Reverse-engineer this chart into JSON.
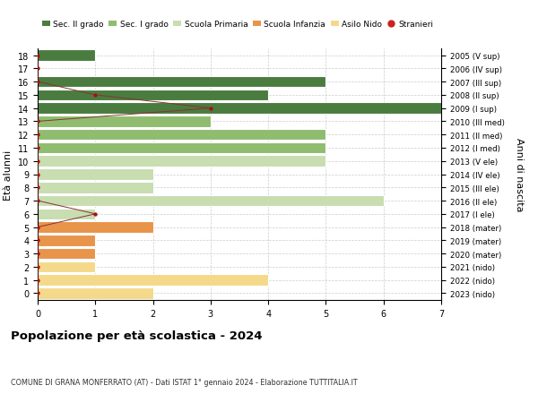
{
  "ages": [
    0,
    1,
    2,
    3,
    4,
    5,
    6,
    7,
    8,
    9,
    10,
    11,
    12,
    13,
    14,
    15,
    16,
    17,
    18
  ],
  "right_labels": [
    "2023 (nido)",
    "2022 (nido)",
    "2021 (nido)",
    "2020 (mater)",
    "2019 (mater)",
    "2018 (mater)",
    "2017 (I ele)",
    "2016 (II ele)",
    "2015 (III ele)",
    "2014 (IV ele)",
    "2013 (V ele)",
    "2012 (I med)",
    "2011 (II med)",
    "2010 (III med)",
    "2009 (I sup)",
    "2008 (II sup)",
    "2007 (III sup)",
    "2006 (IV sup)",
    "2005 (V sup)"
  ],
  "bar_values": [
    2,
    4,
    1,
    1,
    1,
    2,
    1,
    6,
    2,
    2,
    5,
    5,
    5,
    3,
    7,
    4,
    5,
    0,
    1
  ],
  "bar_colors": [
    "#f5d98b",
    "#f5d98b",
    "#f5d98b",
    "#e8944a",
    "#e8944a",
    "#e8944a",
    "#c8ddb0",
    "#c8ddb0",
    "#c8ddb0",
    "#c8ddb0",
    "#c8ddb0",
    "#8fbc6e",
    "#8fbc6e",
    "#8fbc6e",
    "#4a7c3f",
    "#4a7c3f",
    "#4a7c3f",
    "#4a7c3f",
    "#4a7c3f"
  ],
  "stranieri_values": [
    0,
    0,
    0,
    0,
    0,
    0,
    1,
    0,
    0,
    0,
    0,
    0,
    0,
    0,
    3,
    1,
    0,
    0,
    0
  ],
  "legend_labels": [
    "Sec. II grado",
    "Sec. I grado",
    "Scuola Primaria",
    "Scuola Infanzia",
    "Asilo Nido",
    "Stranieri"
  ],
  "legend_colors": [
    "#4a7c3f",
    "#8fbc6e",
    "#c8ddb0",
    "#e8944a",
    "#f5d98b",
    "#cc2222"
  ],
  "title": "Popolazione per età scolastica - 2024",
  "subtitle": "COMUNE DI GRANA MONFERRATO (AT) - Dati ISTAT 1° gennaio 2024 - Elaborazione TUTTITALIA.IT",
  "ylabel": "Età alunni",
  "right_ylabel": "Anni di nascita",
  "xlim": [
    0,
    7
  ],
  "ylim": [
    -0.5,
    18.5
  ],
  "bg_color": "#ffffff",
  "grid_color": "#cccccc",
  "bar_height": 0.85,
  "stranieri_dot_color": "#aa1111",
  "stranieri_line_color": "#883333"
}
